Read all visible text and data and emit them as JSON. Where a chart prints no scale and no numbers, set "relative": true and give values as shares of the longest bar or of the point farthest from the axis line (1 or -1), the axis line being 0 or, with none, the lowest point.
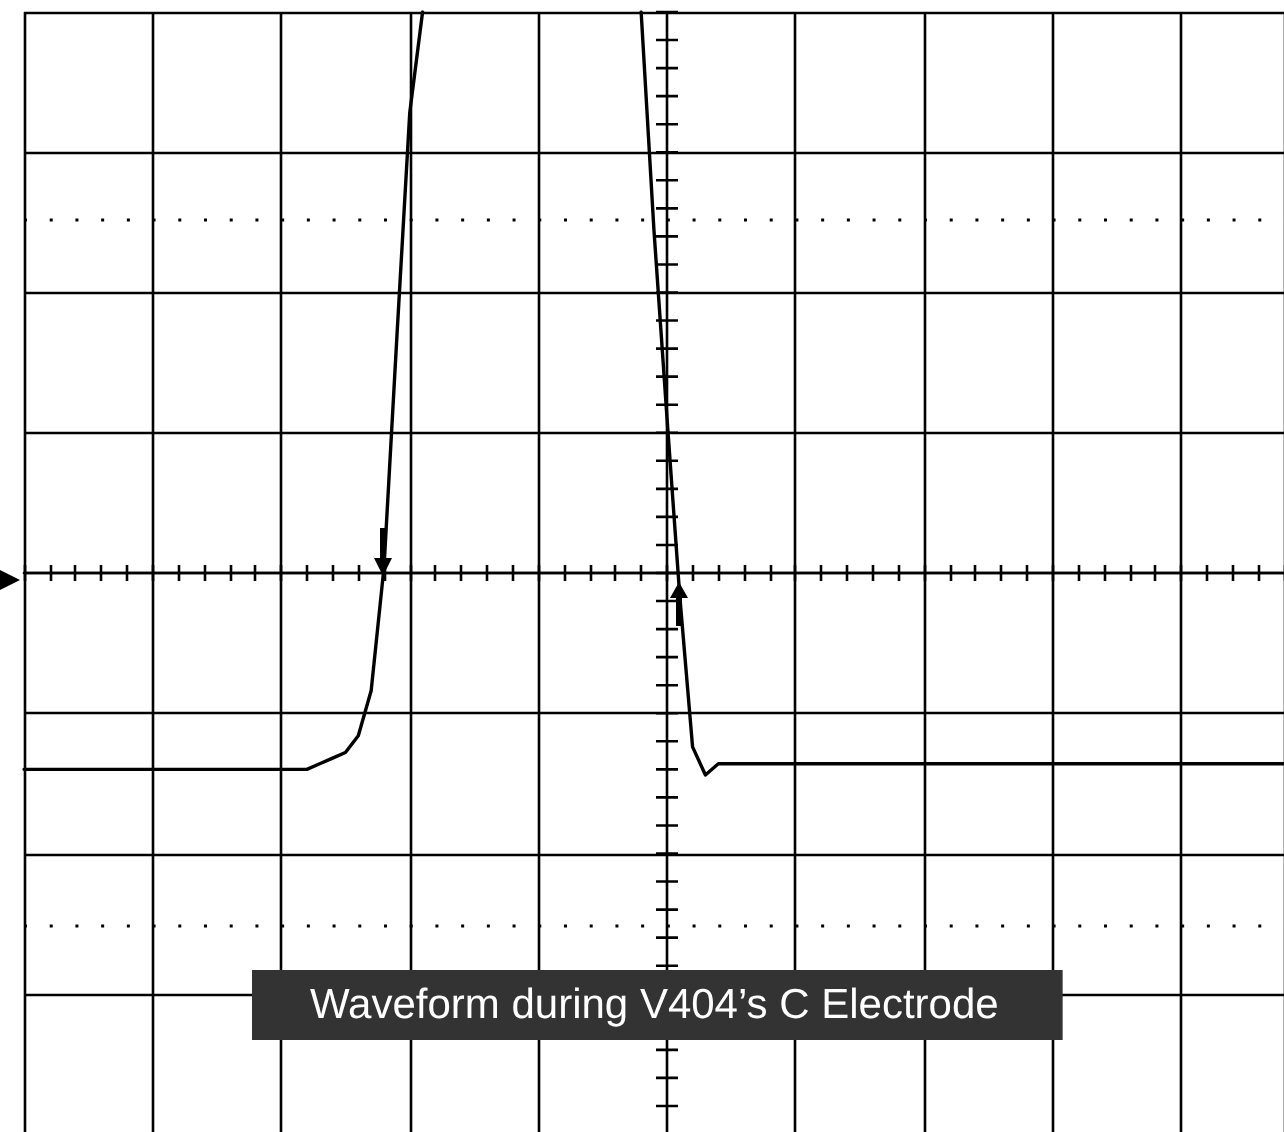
{
  "chart_data": {
    "type": "line",
    "title": "Waveform during V404’s C Electrode",
    "relative": true,
    "categories": [
      null,
      null,
      null,
      null,
      null,
      null,
      null,
      null,
      null,
      null,
      null,
      null,
      null,
      null,
      null,
      null,
      null,
      null,
      null,
      null,
      null,
      null,
      null,
      null,
      null,
      null,
      null,
      null,
      null,
      null,
      null,
      null,
      null,
      null,
      null,
      null,
      null,
      null,
      null,
      null,
      null,
      null,
      null,
      null,
      null,
      null,
      null,
      null,
      null,
      null,
      null,
      null,
      null,
      null,
      null,
      null,
      null,
      null,
      null,
      null,
      null,
      null,
      null,
      null,
      null,
      null,
      null,
      null,
      null,
      null,
      null,
      null,
      null,
      null,
      null,
      null,
      null,
      null,
      null,
      null,
      null,
      null,
      null,
      null,
      null,
      null,
      null,
      null,
      null,
      null,
      null,
      null,
      null,
      null,
      null,
      null,
      null,
      null,
      null
    ],
    "values": [
      -0.35,
      -0.35,
      -0.35,
      -0.35,
      -0.35,
      -0.35,
      -0.35,
      -0.35,
      -0.35,
      -0.35,
      -0.35,
      -0.35,
      -0.35,
      -0.35,
      -0.35,
      -0.35,
      -0.35,
      -0.35,
      -0.35,
      -0.35,
      -0.35,
      -0.35,
      -0.35,
      -0.34,
      -0.33,
      -0.32,
      -0.29,
      -0.21,
      0.01,
      0.42,
      0.82,
      1,
      null,
      null,
      null,
      null,
      null,
      null,
      null,
      null,
      null,
      null,
      null,
      null,
      null,
      null,
      null,
      null,
      1,
      0.61,
      0.28,
      -0.04,
      -0.31,
      -0.36,
      -0.34,
      -0.34,
      -0.34,
      -0.34,
      -0.34,
      -0.34,
      -0.34,
      -0.34,
      -0.34,
      -0.34,
      -0.34,
      -0.34,
      -0.34,
      -0.34,
      -0.34,
      -0.34,
      -0.34,
      -0.34,
      -0.34,
      -0.34,
      -0.34,
      -0.34,
      -0.34,
      -0.34,
      -0.34,
      -0.34,
      -0.34,
      -0.34,
      -0.34,
      -0.34,
      -0.34,
      -0.34,
      -0.34,
      -0.34,
      -0.34,
      -0.34,
      -0.34,
      -0.34,
      -0.34,
      -0.34,
      -0.34,
      -0.34,
      -0.34,
      -0.34,
      -0.34
    ],
    "color": "#000000",
    "grid": true,
    "marker": "none",
    "line_style": "solid",
    "ref_lines": [
      {
        "axis": "y",
        "value": 0.625,
        "line_style": "dotted",
        "color": "#000000"
      },
      {
        "axis": "y",
        "value": -0.625,
        "line_style": "dotted",
        "color": "#000000"
      }
    ]
  }
}
